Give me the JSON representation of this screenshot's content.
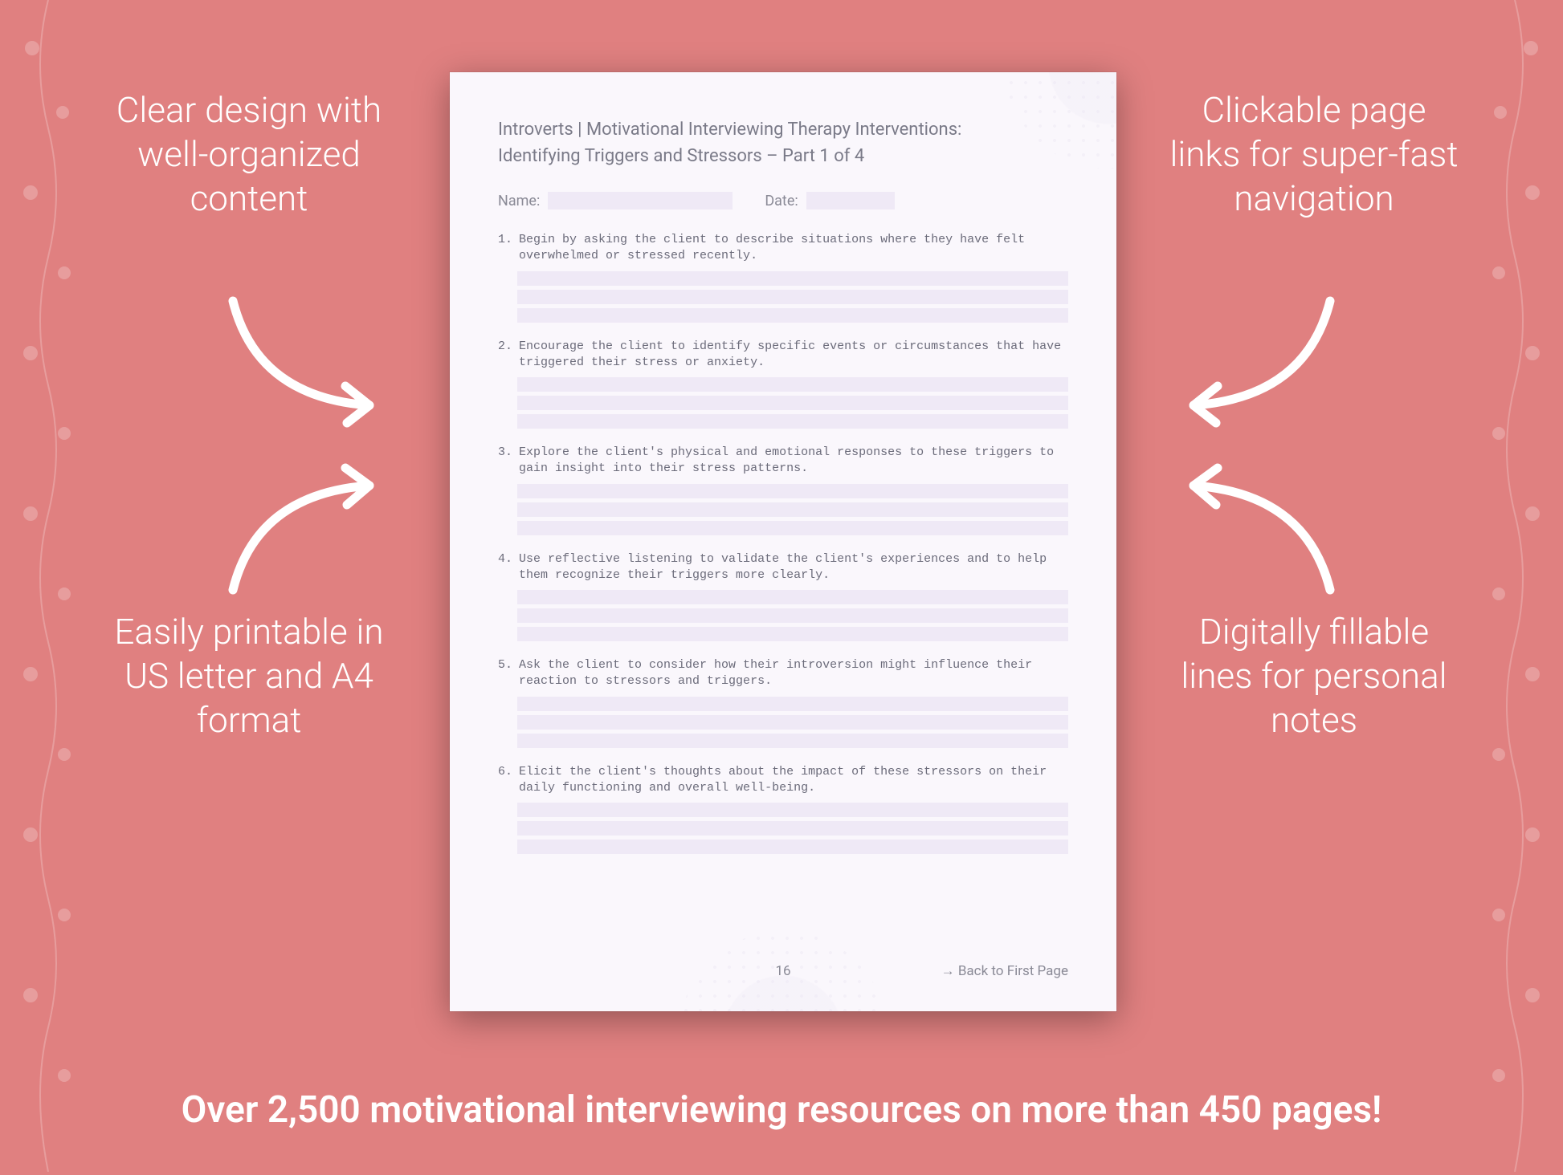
{
  "background_color": "#e08080",
  "text_color": "#ffffff",
  "callouts": {
    "top_left": "Clear design with well-organized content",
    "top_right": "Clickable page links for super-fast navigation",
    "bottom_left": "Easily printable in US letter and A4 format",
    "bottom_right": "Digitally fillable lines for personal notes"
  },
  "callout_fontsize": 44,
  "bottom_banner": "Over 2,500 motivational interviewing resources on more than 450 pages!",
  "bottom_banner_fontsize": 46,
  "arrow_color": "#ffffff",
  "arrow_stroke_width": 10,
  "document": {
    "page_bg": "#faf7fc",
    "line_fill": "#efe9f6",
    "text_color": "#6b6b7a",
    "title_line1": "Introverts | Motivational Interviewing Therapy Interventions:",
    "title_line2": "Identifying Triggers and Stressors – Part 1 of 4",
    "title_fontsize": 22,
    "meta": {
      "name_label": "Name:",
      "date_label": "Date:"
    },
    "question_font": "Courier New",
    "question_fontsize": 15,
    "questions": [
      {
        "num": "1.",
        "text": "Begin by asking the client to describe situations where they have felt overwhelmed or stressed recently."
      },
      {
        "num": "2.",
        "text": "Encourage the client to identify specific events or circumstances that have triggered their stress or anxiety."
      },
      {
        "num": "3.",
        "text": "Explore the client's physical and emotional responses to these triggers to gain insight into their stress patterns."
      },
      {
        "num": "4.",
        "text": "Use reflective listening to validate the client's experiences and to help them recognize their triggers more clearly."
      },
      {
        "num": "5.",
        "text": "Ask the client to consider how their introversion might influence their reaction to stressors and triggers."
      },
      {
        "num": "6.",
        "text": "Elicit the client's thoughts about the impact of these stressors on their daily functioning and overall well-being."
      }
    ],
    "answer_lines_per_question": 3,
    "page_number": "16",
    "back_link": "→ Back to First Page"
  }
}
